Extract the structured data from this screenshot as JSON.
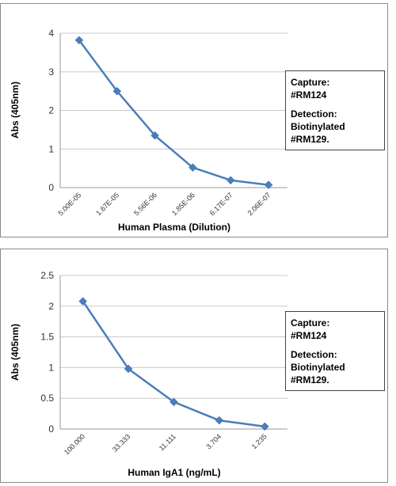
{
  "chart_data": [
    {
      "type": "line",
      "title": "",
      "xlabel": "Human Plasma (Dilution)",
      "ylabel": "Abs (405nm)",
      "categories": [
        "5.00E-05",
        "1.67E-05",
        "5.56E-06",
        "1.85E-06",
        "6.17E-07",
        "2.06E-07"
      ],
      "series": [
        {
          "values": [
            3.82,
            2.5,
            1.35,
            0.52,
            0.19,
            0.07
          ]
        }
      ],
      "ylim": [
        0,
        4
      ],
      "yticks": [
        0,
        1,
        2,
        3,
        4
      ],
      "ytick_labels": [
        "0",
        "1",
        "2",
        "3",
        "4"
      ],
      "grid": true,
      "legend": "none",
      "line_color": "#4a7ebb",
      "annotation": {
        "line1": "Capture:",
        "line2": "#RM124",
        "line3": "Detection:",
        "line4": "Biotinylated #RM129."
      }
    },
    {
      "type": "line",
      "title": "",
      "xlabel": "Human IgA1 (ng/mL)",
      "ylabel": "Abs (405nm)",
      "categories": [
        "100.000",
        "33.333",
        "11.111",
        "3.704",
        "1.235"
      ],
      "series": [
        {
          "values": [
            2.08,
            0.98,
            0.44,
            0.14,
            0.04
          ]
        }
      ],
      "ylim": [
        0,
        2.5
      ],
      "yticks": [
        0,
        0.5,
        1,
        1.5,
        2,
        2.5
      ],
      "ytick_labels": [
        "0",
        "0.5",
        "1",
        "1.5",
        "2",
        "2.5"
      ],
      "grid": true,
      "legend": "none",
      "line_color": "#4a7ebb",
      "annotation": {
        "line1": "Capture:",
        "line2": "#RM124",
        "line3": "Detection:",
        "line4": "Biotinylated #RM129."
      }
    }
  ]
}
